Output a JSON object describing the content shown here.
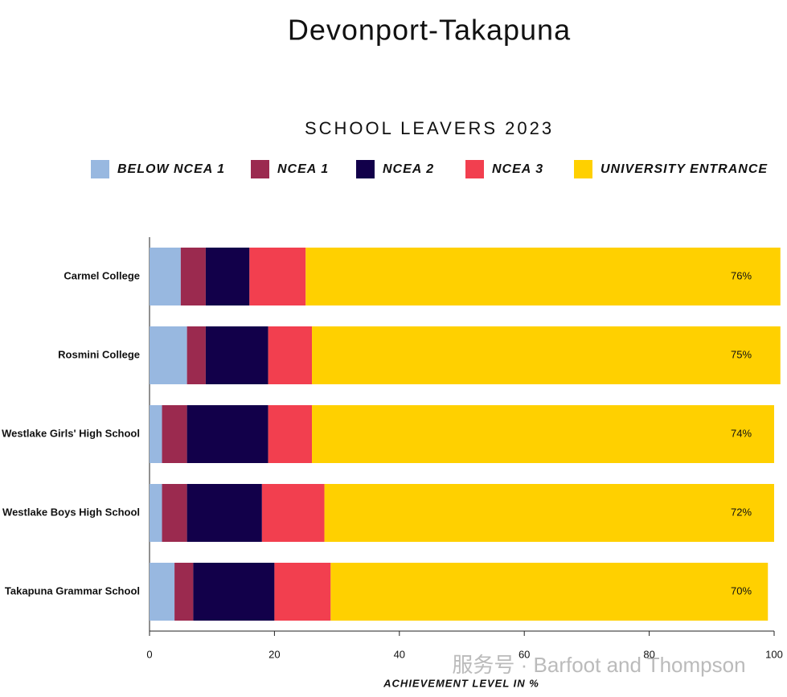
{
  "chart_data": {
    "type": "bar",
    "orientation": "horizontal",
    "stacked": true,
    "title": "Devonport-Takapuna",
    "subtitle": "SCHOOL LEAVERS 2023",
    "x_label": "ACHIEVEMENT LEVEL IN %",
    "categories": [
      "Carmel College",
      "Rosmini College",
      "Westlake Girls' High School",
      "Westlake Boys High School",
      "Takapuna Grammar School"
    ],
    "series": [
      {
        "name": "BELOW NCEA 1",
        "color": "#98b8e0",
        "values": [
          5,
          6,
          2,
          2,
          4
        ]
      },
      {
        "name": "NCEA 1",
        "color": "#9b2a4f",
        "values": [
          4,
          3,
          4,
          4,
          3
        ]
      },
      {
        "name": "NCEA 2",
        "color": "#12004a",
        "values": [
          7,
          10,
          13,
          12,
          13
        ]
      },
      {
        "name": "NCEA 3",
        "color": "#f23f4f",
        "values": [
          9,
          7,
          7,
          10,
          9
        ]
      },
      {
        "name": "UNIVERSITY ENTRANCE",
        "color": "#ffd000",
        "values": [
          76,
          75,
          74,
          72,
          70
        ],
        "value_labels": [
          "76%",
          "75%",
          "74%",
          "72%",
          "70%"
        ]
      }
    ],
    "xlim": [
      0,
      100
    ],
    "xticks": [
      0,
      20,
      40,
      60,
      80,
      100
    ],
    "watermark": "服务号 · Barfoot and Thompson"
  }
}
